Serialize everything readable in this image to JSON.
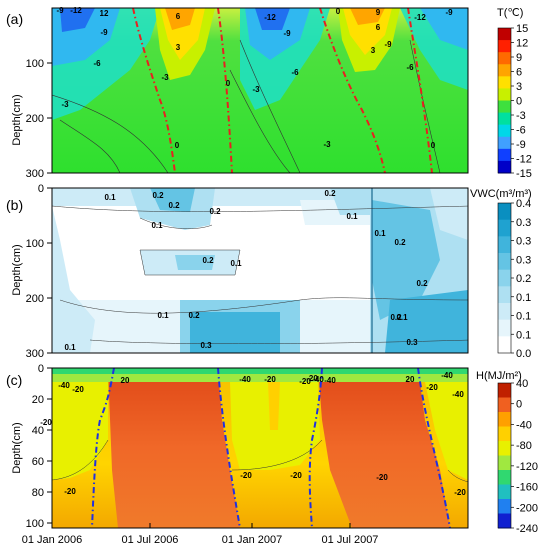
{
  "chart_data": [
    {
      "type": "heatmap",
      "panel_label": "(a)",
      "ylabel": "Depth(cm)",
      "yticks": [
        100,
        200,
        300
      ],
      "colorbar": {
        "title": "T(℃)",
        "ticks": [
          15,
          12,
          9,
          6,
          3,
          0,
          -3,
          -6,
          -9,
          -12,
          -15
        ],
        "colors": [
          "#c00000",
          "#ff2000",
          "#ff6a00",
          "#ffa500",
          "#ffe000",
          "#c8f000",
          "#3ee03e",
          "#00e0a0",
          "#00d8e8",
          "#40a0ff",
          "#1040ff",
          "#0000c8"
        ]
      },
      "contour_labels": [
        "-9",
        "-12",
        "12",
        "-9",
        "-6",
        "6",
        "3",
        "-3",
        "-3",
        "0",
        "-12",
        "-9",
        "-6",
        "-3",
        "0",
        "-3",
        "0",
        "9",
        "6",
        "3",
        "-9",
        "-12",
        "-9",
        "-6",
        "0"
      ],
      "zero_line_color": "#e82020"
    },
    {
      "type": "heatmap",
      "panel_label": "(b)",
      "ylabel": "Depth(cm)",
      "yticks": [
        0,
        100,
        200,
        300
      ],
      "colorbar": {
        "title": "VWC(m³/m³)",
        "ticks": [
          0.4,
          0.35,
          0.3,
          0.25,
          0.2,
          0.15,
          0.1,
          0.05,
          0.0
        ],
        "colors": [
          "#0a8fc0",
          "#1fa2d0",
          "#40b4dc",
          "#64c4e4",
          "#8ad3ec",
          "#aee0f2",
          "#cdebf7",
          "#e6f5fb",
          "#ffffff"
        ]
      },
      "contour_labels": [
        "0.1",
        "0.2",
        "0.2",
        "0.2",
        "0.1",
        "0.2",
        "0.1",
        "0.2",
        "0.1",
        "0.2",
        "0.2",
        "0.1",
        "0.1",
        "0.2",
        "0.2",
        "0.1",
        "0.3",
        "0.3",
        "0.1"
      ]
    },
    {
      "type": "heatmap",
      "panel_label": "(c)",
      "ylabel": "Depth(cm)",
      "yticks": [
        0,
        20,
        40,
        60,
        80,
        100
      ],
      "xticks": [
        "01 Jan 2006",
        "01 Jul 2006",
        "01 Jan 2007",
        "01 Jul 2007"
      ],
      "colorbar": {
        "title": "H(MJ/m²)",
        "ticks": [
          40,
          0,
          -40,
          -80,
          -120,
          -160,
          -200,
          -240
        ],
        "colors": [
          "#c02000",
          "#f06020",
          "#ffa000",
          "#ffd000",
          "#e8f000",
          "#a0e840",
          "#30d870",
          "#20c0c0",
          "#2080f0",
          "#1020d0"
        ]
      },
      "contour_labels": [
        "-40",
        "-20",
        "-20",
        "20",
        "-20",
        "-40",
        "-20",
        "-20",
        "-20",
        "-40",
        "-20",
        "20",
        "-40",
        "-20",
        "-40",
        "-20",
        "-20",
        "-40",
        "-20"
      ],
      "zero_line_color": "#2030e0"
    }
  ]
}
